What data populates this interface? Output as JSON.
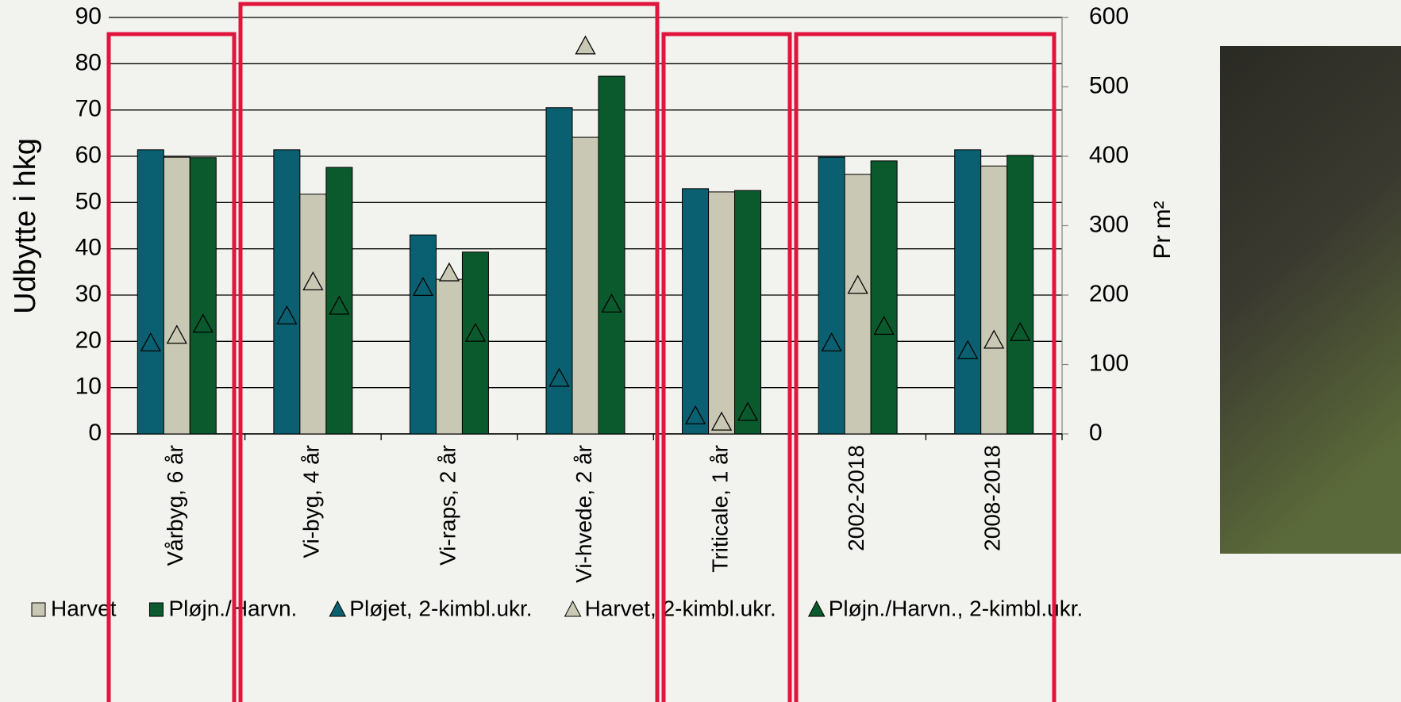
{
  "chart_data": {
    "type": "bar",
    "y_label": "Udbytte i hkg",
    "y2_label": "Pr m²",
    "categories": [
      "Vårbyg, 6 år",
      "Vi-byg, 4 år",
      "Vi-raps, 2 år",
      "Vi-hvede, 2 år",
      "Triticale, 1 år",
      "2002-2018",
      "2008-2018"
    ],
    "series": [
      {
        "color": "#0a6070",
        "values": [
          61.4,
          61.4,
          43.0,
          70.5,
          53.0,
          59.8,
          61.4
        ]
      },
      {
        "name": "Harvet",
        "color": "#c8c8b4",
        "values": [
          59.8,
          51.8,
          33.4,
          64.1,
          52.3,
          56.1,
          57.9
        ]
      },
      {
        "name": "Pløjn./Harvn.",
        "color": "#0b5a2e",
        "values": [
          59.7,
          57.6,
          39.3,
          77.3,
          52.6,
          59.0,
          60.2
        ]
      },
      {
        "name": "Pløjet, 2-kimbl.ukr.",
        "color": "#0a6070",
        "axis": "y2",
        "marker": "triangle",
        "values": [
          131,
          170,
          211,
          80,
          26,
          131,
          120
        ]
      },
      {
        "name": "Harvet, 2-kimbl.ukr.",
        "color": "#c8c8b4",
        "axis": "y2",
        "marker": "triangle",
        "values": [
          142,
          219,
          232,
          559,
          17,
          214,
          135
        ]
      },
      {
        "name": "Pløjn./Harvn., 2-kimbl.ukr.",
        "color": "#0b5a2e",
        "axis": "y2",
        "marker": "triangle",
        "values": [
          158,
          184,
          145,
          187,
          31,
          155,
          146
        ]
      }
    ],
    "ylim": [
      0,
      90
    ],
    "yticks": [
      0,
      10,
      20,
      30,
      40,
      50,
      60,
      70,
      80,
      90
    ],
    "y2lim": [
      0,
      600
    ],
    "y2ticks": [
      0,
      100,
      200,
      300,
      400,
      500,
      600
    ],
    "grid": true,
    "legend": "bottom"
  }
}
